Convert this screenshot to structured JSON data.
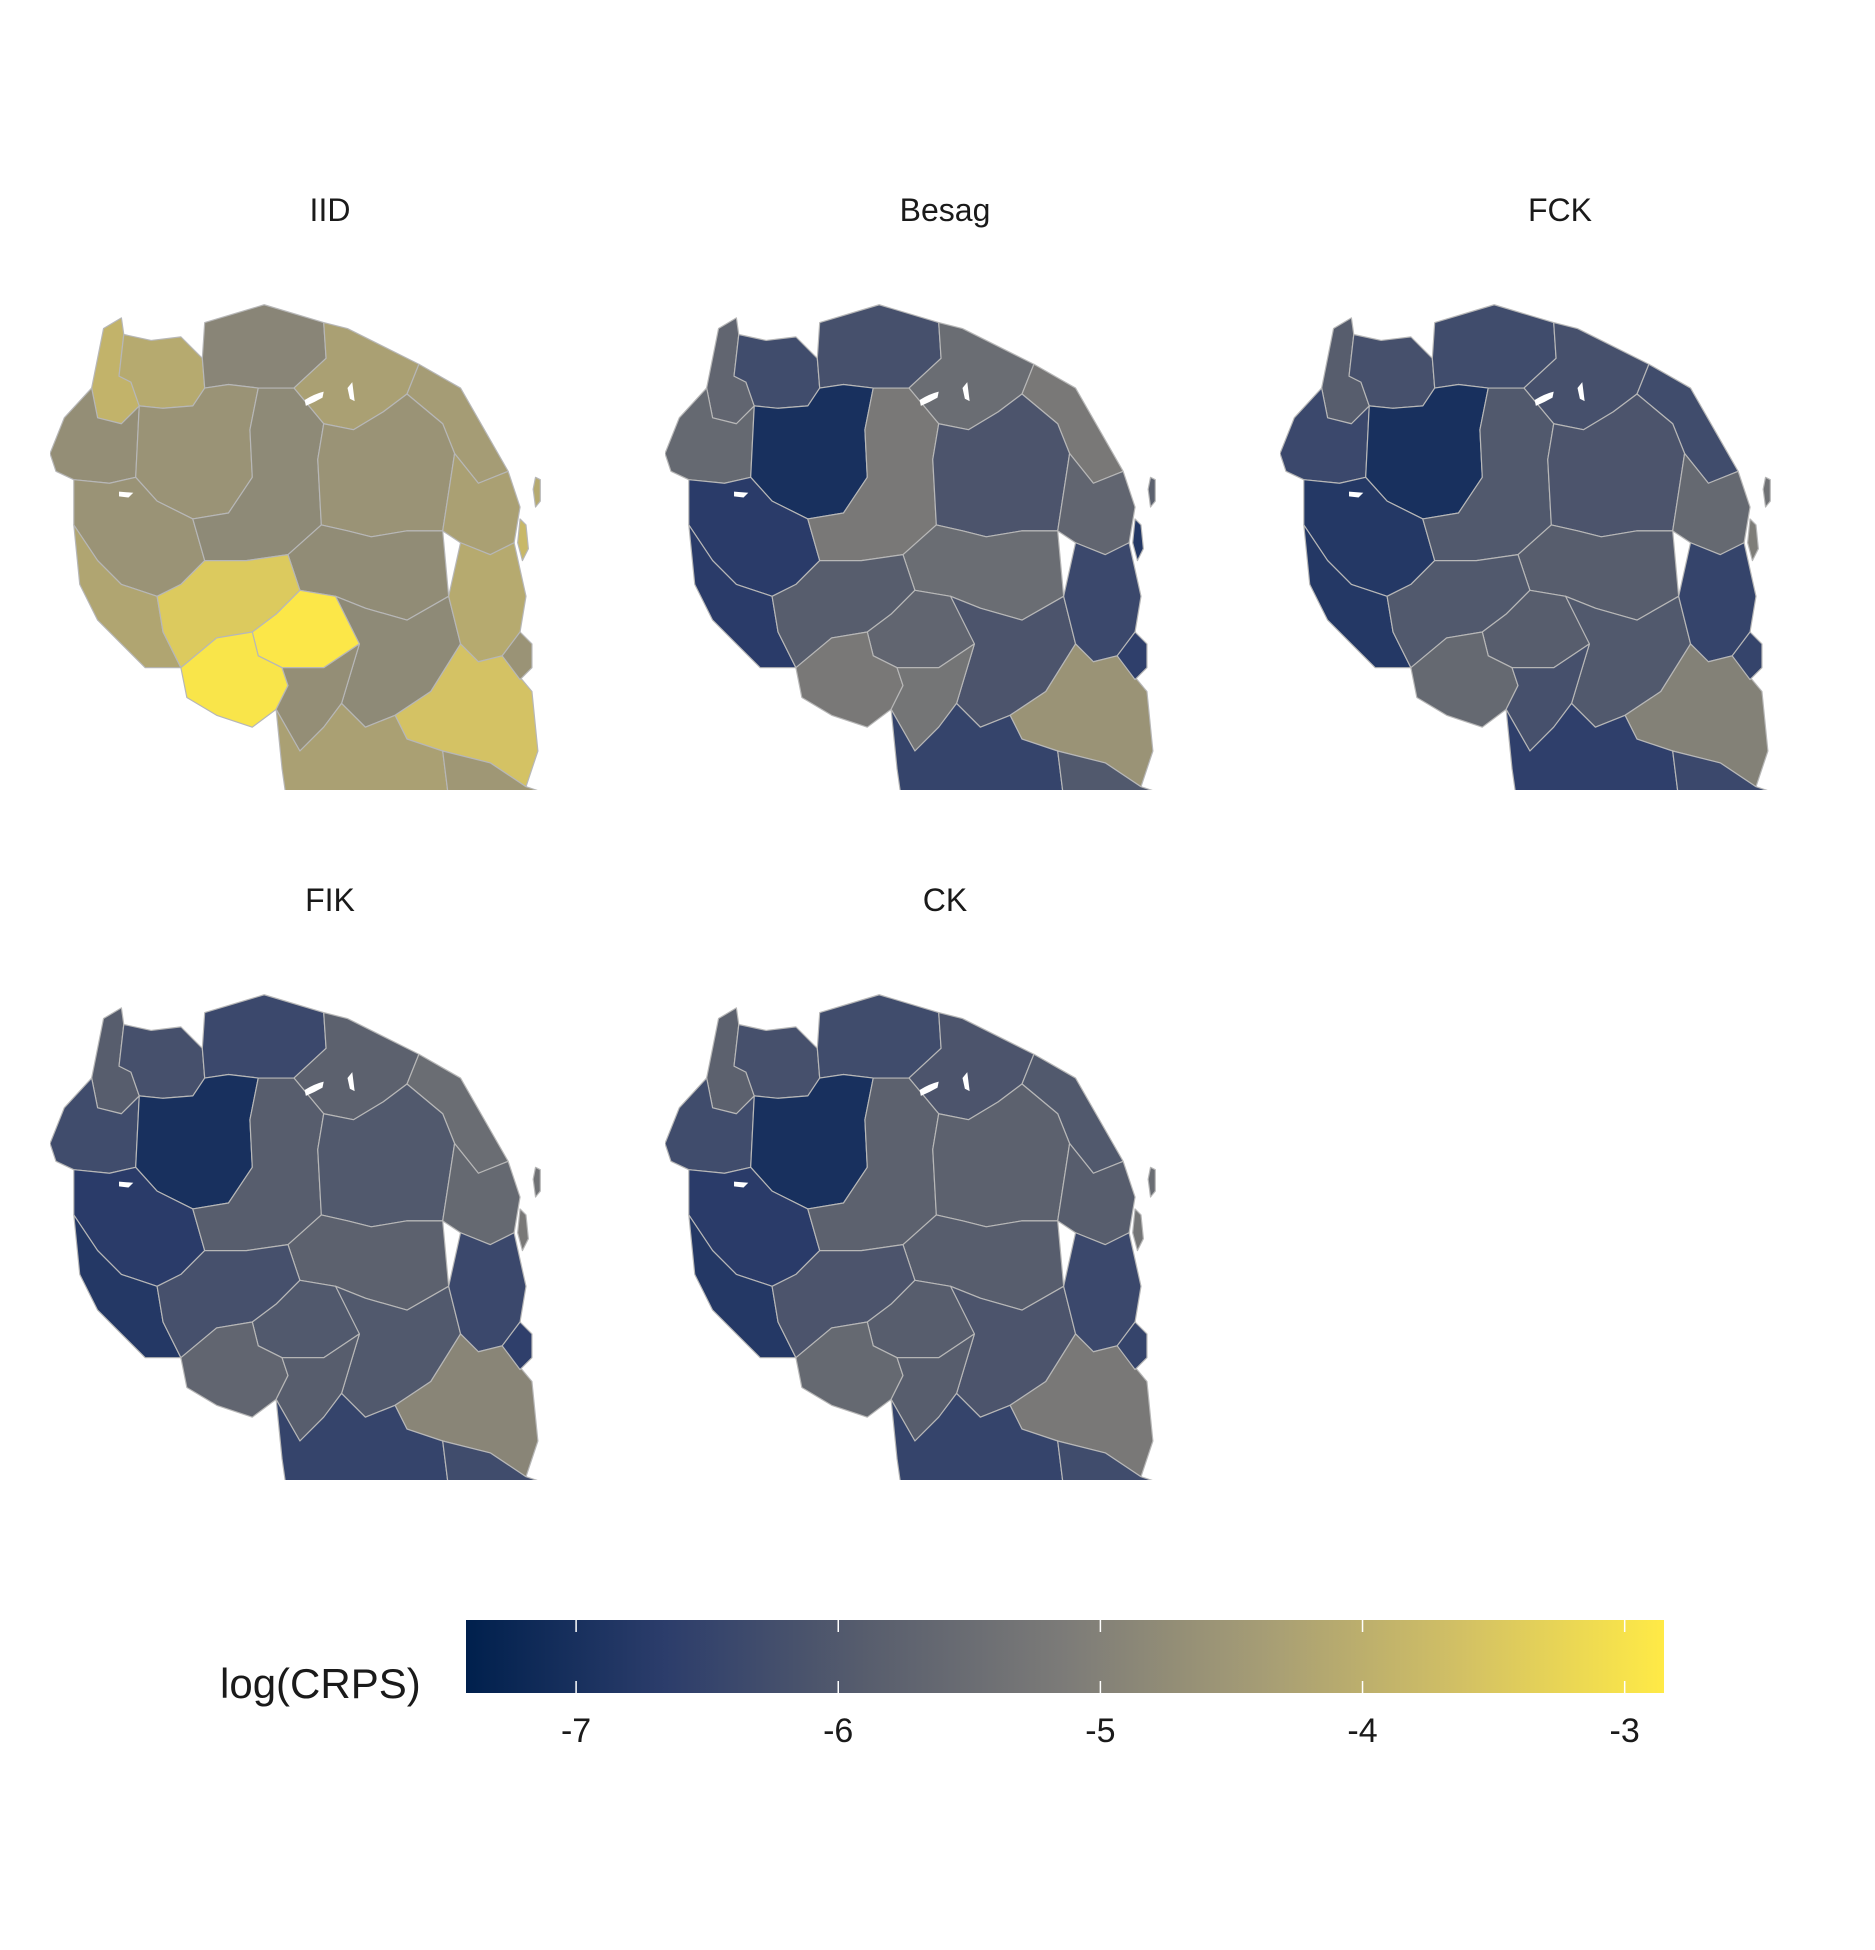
{
  "legend": {
    "title": "log(CRPS)",
    "min": -7.42,
    "max": -2.85,
    "ticks": [
      "-7",
      "-6",
      "-5",
      "-4",
      "-3"
    ],
    "tick_values": [
      -7,
      -6,
      -5,
      -4,
      -3
    ],
    "colors": [
      "#00204d",
      "#2c3d6b",
      "#575d6d",
      "#7c7b78",
      "#a69d75",
      "#d3c164",
      "#ffea46"
    ]
  },
  "regions": [
    "kagera",
    "mwanza",
    "mara",
    "kigoma",
    "shinyanga",
    "arusha",
    "kilimanjaro",
    "tabora",
    "singida",
    "manyara",
    "tanga",
    "dodoma",
    "rukwa",
    "katavi",
    "iringa",
    "morogoro",
    "pwani",
    "mbeya",
    "njombe",
    "lindi",
    "ruvuma",
    "mtwara",
    "dar-es-salaam",
    "zanzibar",
    "pemba"
  ],
  "panels": [
    {
      "title": "IID",
      "values": {
        "kagera": -3.9,
        "mwanza": -4.1,
        "mara": -4.9,
        "kigoma": -4.7,
        "shinyanga": -4.6,
        "arusha": -4.3,
        "kilimanjaro": -4.4,
        "tabora": -4.6,
        "singida": -4.8,
        "manyara": -4.6,
        "tanga": -4.3,
        "dodoma": -4.75,
        "rukwa": -4.2,
        "katavi": -3.45,
        "iringa": -2.9,
        "morogoro": -4.8,
        "pwani": -4.1,
        "mbeya": -2.95,
        "njombe": -4.7,
        "lindi": -3.6,
        "ruvuma": -4.3,
        "mtwara": -4.5,
        "dar-es-salaam": -4.6,
        "zanzibar": -3.8,
        "pemba": -4.1
      }
    },
    {
      "title": "Besag",
      "values": {
        "kagera": -5.7,
        "mwanza": -6.3,
        "mara": -6.2,
        "kigoma": -5.6,
        "shinyanga": -7.0,
        "arusha": -5.5,
        "kilimanjaro": -5.2,
        "tabora": -6.7,
        "singida": -5.2,
        "manyara": -6.1,
        "tanga": -5.7,
        "dodoma": -5.5,
        "rukwa": -6.7,
        "katavi": -5.9,
        "iringa": -5.7,
        "morogoro": -6.1,
        "pwani": -6.4,
        "mbeya": -5.2,
        "njombe": -5.3,
        "lindi": -4.6,
        "ruvuma": -6.5,
        "mtwara": -6.0,
        "dar-es-salaam": -6.6,
        "zanzibar": -6.8,
        "pemba": -5.8
      }
    },
    {
      "title": "FCK",
      "values": {
        "kagera": -5.9,
        "mwanza": -6.2,
        "mara": -6.3,
        "kigoma": -6.4,
        "shinyanga": -7.0,
        "arusha": -6.2,
        "kilimanjaro": -6.3,
        "tabora": -6.8,
        "singida": -6.0,
        "manyara": -6.1,
        "tanga": -5.6,
        "dodoma": -5.9,
        "rukwa": -6.8,
        "katavi": -6.0,
        "iringa": -5.9,
        "morogoro": -6.0,
        "pwani": -6.5,
        "mbeya": -5.6,
        "njombe": -6.2,
        "lindi": -5.0,
        "ruvuma": -6.6,
        "mtwara": -6.4,
        "dar-es-salaam": -6.5,
        "zanzibar": -5.1,
        "pemba": -5.4
      }
    },
    {
      "title": "FIK",
      "values": {
        "kagera": -5.9,
        "mwanza": -6.2,
        "mara": -6.4,
        "kigoma": -6.3,
        "shinyanga": -7.0,
        "arusha": -5.8,
        "kilimanjaro": -5.5,
        "tabora": -6.7,
        "singida": -5.9,
        "manyara": -6.0,
        "tanga": -5.6,
        "dodoma": -5.8,
        "rukwa": -6.8,
        "katavi": -6.2,
        "iringa": -6.0,
        "morogoro": -6.0,
        "pwani": -6.4,
        "mbeya": -5.7,
        "njombe": -5.9,
        "lindi": -4.9,
        "ruvuma": -6.5,
        "mtwara": -6.3,
        "dar-es-salaam": -6.6,
        "zanzibar": -5.2,
        "pemba": -5.4
      }
    },
    {
      "title": "CK",
      "values": {
        "kagera": -5.8,
        "mwanza": -6.2,
        "mara": -6.3,
        "kigoma": -6.3,
        "shinyanga": -7.0,
        "arusha": -6.1,
        "kilimanjaro": -6.0,
        "tabora": -6.7,
        "singida": -5.8,
        "manyara": -5.8,
        "tanga": -5.9,
        "dodoma": -5.9,
        "rukwa": -6.8,
        "katavi": -6.1,
        "iringa": -5.9,
        "morogoro": -6.1,
        "pwani": -6.4,
        "mbeya": -5.6,
        "njombe": -5.9,
        "lindi": -5.2,
        "ruvuma": -6.5,
        "mtwara": -6.3,
        "dar-es-salaam": -6.5,
        "zanzibar": -5.3,
        "pemba": -5.5
      }
    }
  ]
}
